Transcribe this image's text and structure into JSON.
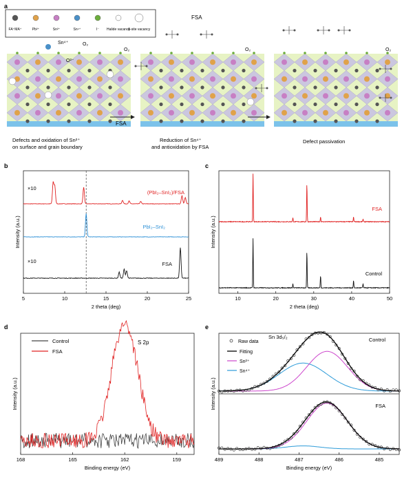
{
  "figure": {
    "panel_letters": [
      "a",
      "b",
      "c",
      "d",
      "e"
    ]
  },
  "panel_a": {
    "legend": [
      {
        "label": "FA⁺MA⁺",
        "color": "#555555"
      },
      {
        "label": "Pb²⁺",
        "color": "#e0a24a"
      },
      {
        "label": "Sn²⁺",
        "color": "#c77fc4"
      },
      {
        "label": "Sn⁴⁺",
        "color": "#4a90c8"
      },
      {
        "label": "I⁻",
        "color": "#6cae3c"
      },
      {
        "label": "Halide vacancy",
        "color": "#ffffff"
      },
      {
        "label": "A-site vacancy",
        "color": "#ffffff"
      }
    ],
    "fsa_label": "FSA",
    "sn4_label": "Sn⁴⁺",
    "o2_label": "O₂",
    "o2_minus_label": "O²⁻",
    "arrow1_label": "FSA",
    "captions": [
      "Defects and oxidation of Sn²⁺ on surface and grain boundary",
      "Reduction of Sn⁴⁺ and antioxidation by FSA",
      "Defect passivation"
    ],
    "caption_lines": [
      [
        "Defects and oxidation of Sn²⁺",
        "on surface and grain boundary"
      ],
      [
        "Reduction of Sn⁴⁺",
        "and antioxidation by FSA"
      ],
      [
        "Defect passivation"
      ]
    ]
  },
  "chart_data": [
    {
      "panel": "b",
      "type": "line",
      "xlabel": "2 theta (deg)",
      "ylabel": "Intensity (a.u.)",
      "xlim": [
        5,
        25
      ],
      "xticks": [
        5,
        10,
        15,
        20,
        25
      ],
      "reference_line_x": 12.6,
      "series": [
        {
          "name": "(PbI₂–SnI₂)/FSA",
          "color": "#e02020",
          "multiplier": "×10",
          "peaks": [
            [
              8.6,
              0.9
            ],
            [
              8.8,
              0.75
            ],
            [
              12.3,
              0.7
            ],
            [
              17.0,
              0.15
            ],
            [
              17.8,
              0.12
            ],
            [
              19.2,
              0.1
            ],
            [
              24.2,
              0.35
            ],
            [
              24.6,
              0.28
            ]
          ]
        },
        {
          "name": "PbI₂–SnI₂",
          "color": "#2b8fd6",
          "multiplier": "",
          "peaks": [
            [
              12.6,
              1.0
            ]
          ]
        },
        {
          "name": "FSA",
          "color": "#111111",
          "multiplier": "×10",
          "peaks": [
            [
              16.6,
              0.2
            ],
            [
              17.2,
              0.3
            ],
            [
              17.5,
              0.25
            ],
            [
              24.0,
              1.0
            ]
          ]
        }
      ]
    },
    {
      "panel": "c",
      "type": "line",
      "xlabel": "2 theta (deg)",
      "ylabel": "Intensity (a.u.)",
      "xlim": [
        5,
        50
      ],
      "xticks": [
        10,
        20,
        30,
        40,
        50
      ],
      "series": [
        {
          "name": "FSA",
          "color": "#e02020",
          "peaks": [
            [
              14.0,
              1.0
            ],
            [
              24.5,
              0.08
            ],
            [
              28.2,
              0.8
            ],
            [
              31.8,
              0.1
            ],
            [
              40.5,
              0.1
            ],
            [
              43.0,
              0.05
            ]
          ]
        },
        {
          "name": "Control",
          "color": "#111111",
          "peaks": [
            [
              14.0,
              1.0
            ],
            [
              24.5,
              0.08
            ],
            [
              28.2,
              0.75
            ],
            [
              31.8,
              0.25
            ],
            [
              40.5,
              0.15
            ],
            [
              43.0,
              0.08
            ]
          ]
        }
      ]
    },
    {
      "panel": "d",
      "type": "line",
      "title": "S 2p",
      "xlabel": "Binding energy (eV)",
      "ylabel": "Intensity (a.u.)",
      "xlim": [
        168,
        158
      ],
      "xticks": [
        168,
        165,
        162,
        159
      ],
      "series": [
        {
          "name": "Control",
          "color": "#444444",
          "peaks": []
        },
        {
          "name": "FSA",
          "color": "#e02020",
          "peaks": [
            [
              162.3,
              1.0
            ],
            [
              161.6,
              0.8
            ]
          ]
        }
      ]
    },
    {
      "panel": "e",
      "type": "line",
      "title": "Sn 3d₅/₂",
      "xlabel": "Binding energy (eV)",
      "ylabel": "Intensity (a.u.)",
      "xlim": [
        489,
        484.5
      ],
      "xticks": [
        489,
        488,
        487,
        486,
        485
      ],
      "legend": [
        "Raw data",
        "Fitting",
        "Sn²⁺",
        "Sn⁴⁺"
      ],
      "subplots": [
        {
          "label": "Control",
          "sn2": {
            "center": 486.3,
            "height": 0.78,
            "fwhm": 1.2
          },
          "sn4": {
            "center": 486.9,
            "height": 0.55,
            "fwhm": 1.4
          }
        },
        {
          "label": "FSA",
          "sn2": {
            "center": 486.3,
            "height": 0.9,
            "fwhm": 1.2
          },
          "sn4": {
            "center": 486.9,
            "height": 0.06,
            "fwhm": 1.0
          }
        }
      ],
      "colors": {
        "raw": "#222222",
        "fit": "#000000",
        "sn2": "#cc44cc",
        "sn4": "#2b9ad8"
      }
    }
  ]
}
